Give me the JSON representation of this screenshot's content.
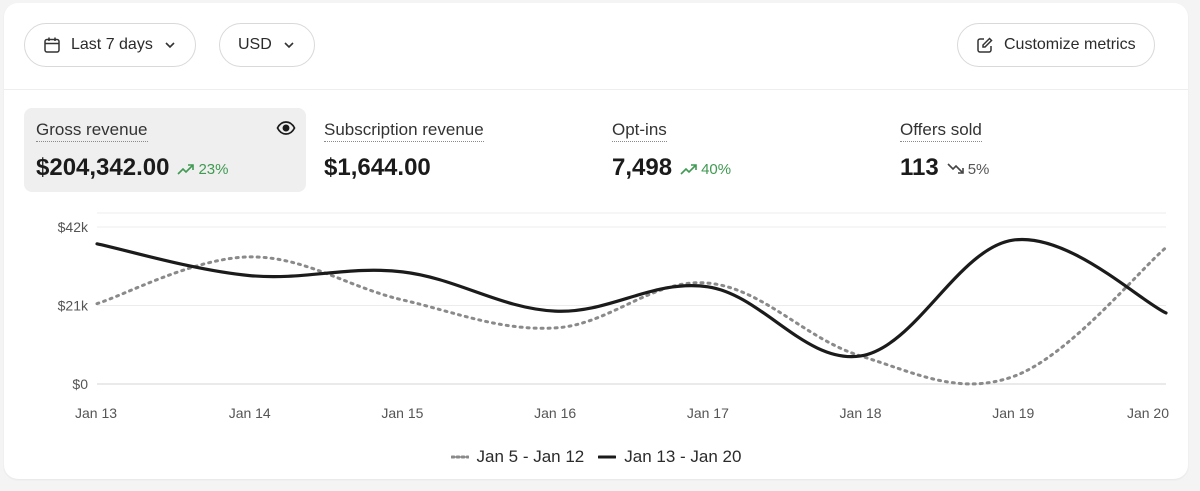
{
  "toolbar": {
    "date_range": "Last 7 days",
    "currency": "USD",
    "customize_label": "Customize metrics"
  },
  "metrics": [
    {
      "label": "Gross revenue",
      "value": "$204,342.00",
      "delta": "23%",
      "direction": "up",
      "active": true
    },
    {
      "label": "Subscription revenue",
      "value": "$1,644.00",
      "delta": "",
      "direction": "",
      "active": false
    },
    {
      "label": "Opt-ins",
      "value": "7,498",
      "delta": "40%",
      "direction": "up",
      "active": false
    },
    {
      "label": "Offers sold",
      "value": "113",
      "delta": "5%",
      "direction": "down",
      "active": false
    }
  ],
  "colors": {
    "up": "#3f9a52",
    "current": "#1b1b1b",
    "previous": "#8a8a8a"
  },
  "chart_data": {
    "type": "line",
    "title": "Gross revenue",
    "categories": [
      "Jan 13",
      "Jan 14",
      "Jan 15",
      "Jan 16",
      "Jan 17",
      "Jan 18",
      "Jan 19",
      "Jan 20"
    ],
    "ylim": [
      0,
      42000
    ],
    "yticks": [
      0,
      21000,
      42000
    ],
    "ytick_labels": [
      "$0",
      "$21k",
      "$42k"
    ],
    "series": [
      {
        "name": "Jan 5 - Jan 12",
        "style": "dotted",
        "values": [
          21500,
          34000,
          22500,
          15000,
          27000,
          7500,
          2000,
          36500
        ]
      },
      {
        "name": "Jan 13 - Jan 20",
        "style": "solid",
        "values": [
          37500,
          29000,
          30000,
          19500,
          26000,
          7500,
          38500,
          19000
        ]
      }
    ],
    "legend_position": "bottom-center"
  }
}
